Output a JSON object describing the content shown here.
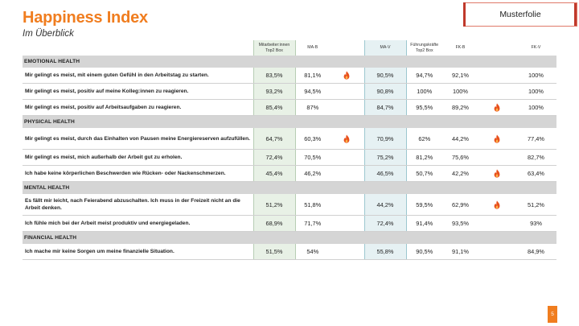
{
  "title": "Happiness Index",
  "subtitle": "Im Überblick",
  "badge": "Musterfolie",
  "page_number": "5",
  "columns": [
    "Mitarbeiter:innen Top2 Box",
    "MA-B",
    "",
    "MA-V",
    "Führungskräfte Top2 Box",
    "FK-B",
    "",
    "FK-V"
  ],
  "sections": [
    {
      "name": "EMOTIONAL HEALTH",
      "rows": [
        {
          "q": "Mir gelingt es meist, mit einem guten Gefühl in den Arbeitstag zu starten.",
          "v": [
            "83,5%",
            "81,1%",
            "flame",
            "90,5%",
            "94,7%",
            "92,1%",
            "",
            "100%"
          ]
        },
        {
          "q": "Mir gelingt es meist, positiv auf meine Kolleg:innen zu reagieren.",
          "v": [
            "93,2%",
            "94,5%",
            "",
            "90,8%",
            "100%",
            "100%",
            "",
            "100%"
          ]
        },
        {
          "q": "Mir gelingt es meist, positiv auf Arbeitsaufgaben zu reagieren.",
          "v": [
            "85,4%",
            "87%",
            "",
            "84,7%",
            "95,5%",
            "89,2%",
            "flame",
            "100%"
          ]
        }
      ]
    },
    {
      "name": "PHYSICAL HEALTH",
      "rows": [
        {
          "q": "Mir gelingt es meist, durch das Einhalten von Pausen meine Energiereserven aufzufüllen.",
          "v": [
            "64,7%",
            "60,3%",
            "flame",
            "70,9%",
            "62%",
            "44,2%",
            "flame",
            "77,4%"
          ],
          "tall": true
        },
        {
          "q": "Mir gelingt es meist, mich außerhalb der Arbeit gut zu erholen.",
          "v": [
            "72,4%",
            "70,5%",
            "",
            "75,2%",
            "81,2%",
            "75,6%",
            "",
            "82,7%"
          ]
        },
        {
          "q": "Ich habe keine körperlichen Beschwerden wie Rücken- oder Nackenschmerzen.",
          "v": [
            "45,4%",
            "46,2%",
            "",
            "46,5%",
            "50,7%",
            "42,2%",
            "flame",
            "63,4%"
          ]
        }
      ]
    },
    {
      "name": "MENTAL HEALTH",
      "rows": [
        {
          "q": "Es fällt mir leicht, nach Feierabend abzuschalten. Ich muss in der Freizeit nicht an die Arbeit denken.",
          "v": [
            "51,2%",
            "51,8%",
            "",
            "44,2%",
            "59,5%",
            "62,9%",
            "flame",
            "51,2%"
          ],
          "tall": true
        },
        {
          "q": "Ich fühle mich bei der Arbeit meist produktiv und energiegeladen.",
          "v": [
            "68,9%",
            "71,7%",
            "",
            "72,4%",
            "91,4%",
            "93,5%",
            "",
            "93%"
          ]
        }
      ]
    },
    {
      "name": "FINANCIAL HEALTH",
      "rows": [
        {
          "q": "Ich mache mir keine Sorgen um meine finanzielle Situation.",
          "v": [
            "51,5%",
            "54%",
            "",
            "55,8%",
            "90,5%",
            "91,1%",
            "",
            "84,9%"
          ]
        }
      ]
    }
  ],
  "colors": {
    "accent": "#f07d1f",
    "flame": "#e8501c",
    "employee_col": "#e8f1e6",
    "leader_col": "#e6f1f3"
  }
}
